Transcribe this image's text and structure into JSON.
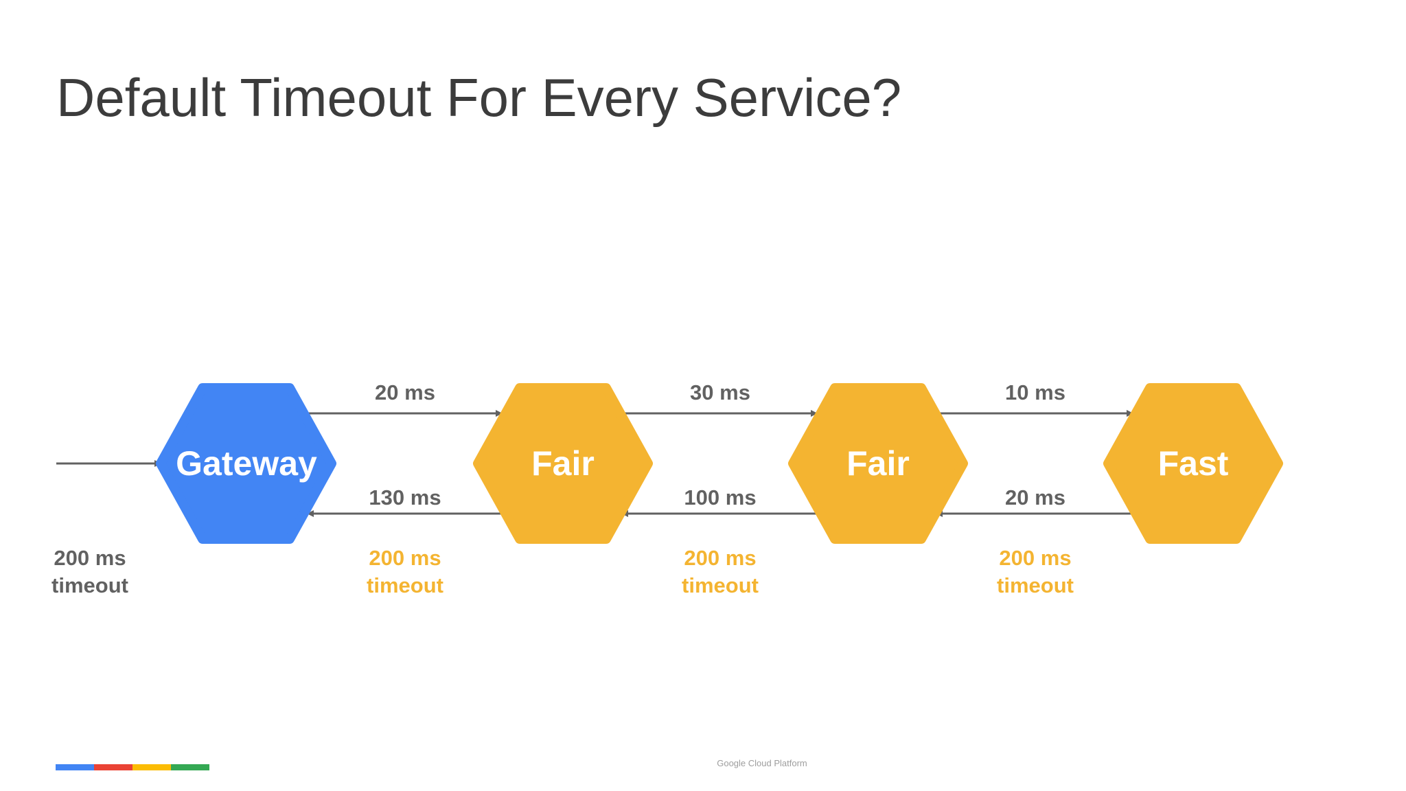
{
  "title": "Default Timeout For Every Service?",
  "footer": "Google Cloud Platform",
  "colors": {
    "gateway": "#4285f4",
    "service": "#f4b431",
    "arrow": "#616161",
    "label": "#616161",
    "timeout_highlight": "#f4b431",
    "brand": [
      "#4285f4",
      "#ea4335",
      "#fbbc04",
      "#34a853"
    ]
  },
  "nodes": [
    {
      "label": "Gateway",
      "kind": "gateway"
    },
    {
      "label": "Fair",
      "kind": "service"
    },
    {
      "label": "Fair",
      "kind": "service"
    },
    {
      "label": "Fast",
      "kind": "service"
    }
  ],
  "requests": [
    "20 ms",
    "30 ms",
    "10 ms"
  ],
  "responses": [
    "130 ms",
    "100 ms",
    "20 ms"
  ],
  "timeouts": [
    {
      "value": "200 ms",
      "unit": "timeout",
      "highlight": false
    },
    {
      "value": "200 ms",
      "unit": "timeout",
      "highlight": true
    },
    {
      "value": "200 ms",
      "unit": "timeout",
      "highlight": true
    },
    {
      "value": "200 ms",
      "unit": "timeout",
      "highlight": true
    }
  ]
}
